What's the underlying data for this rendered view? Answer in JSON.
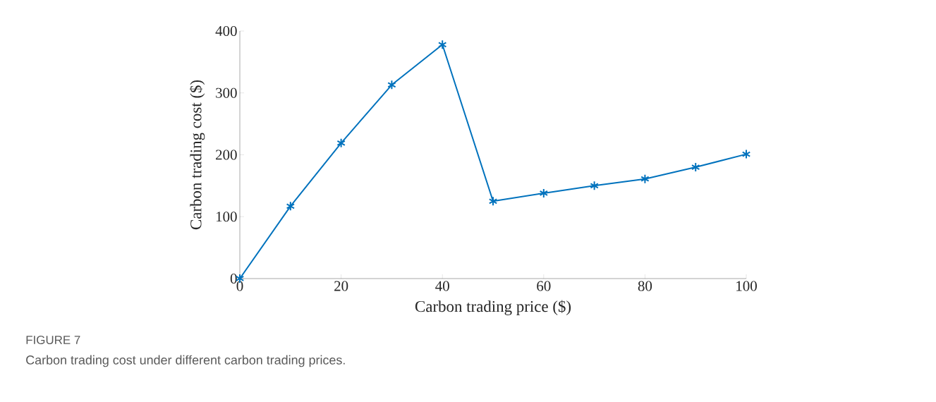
{
  "chart_data": {
    "type": "line",
    "xlabel": "Carbon trading price ($)",
    "ylabel": "Carbon trading cost ($)",
    "x": [
      0,
      10,
      20,
      30,
      40,
      50,
      60,
      70,
      80,
      90,
      100
    ],
    "series": [
      {
        "color": "#0072bd",
        "values": [
          0,
          117,
          219,
          313,
          378,
          125,
          138,
          150,
          161,
          180,
          201
        ]
      }
    ],
    "xlim": [
      0,
      100
    ],
    "ylim": [
      0,
      400
    ],
    "xticks": [
      0,
      20,
      40,
      60,
      80,
      100
    ],
    "yticks": [
      0,
      100,
      200,
      300,
      400
    ],
    "marker": "cross",
    "line_style": "solid",
    "grid": false,
    "annotations": [
      "FIGURE 7",
      "Carbon trading cost under different carbon trading prices."
    ]
  }
}
